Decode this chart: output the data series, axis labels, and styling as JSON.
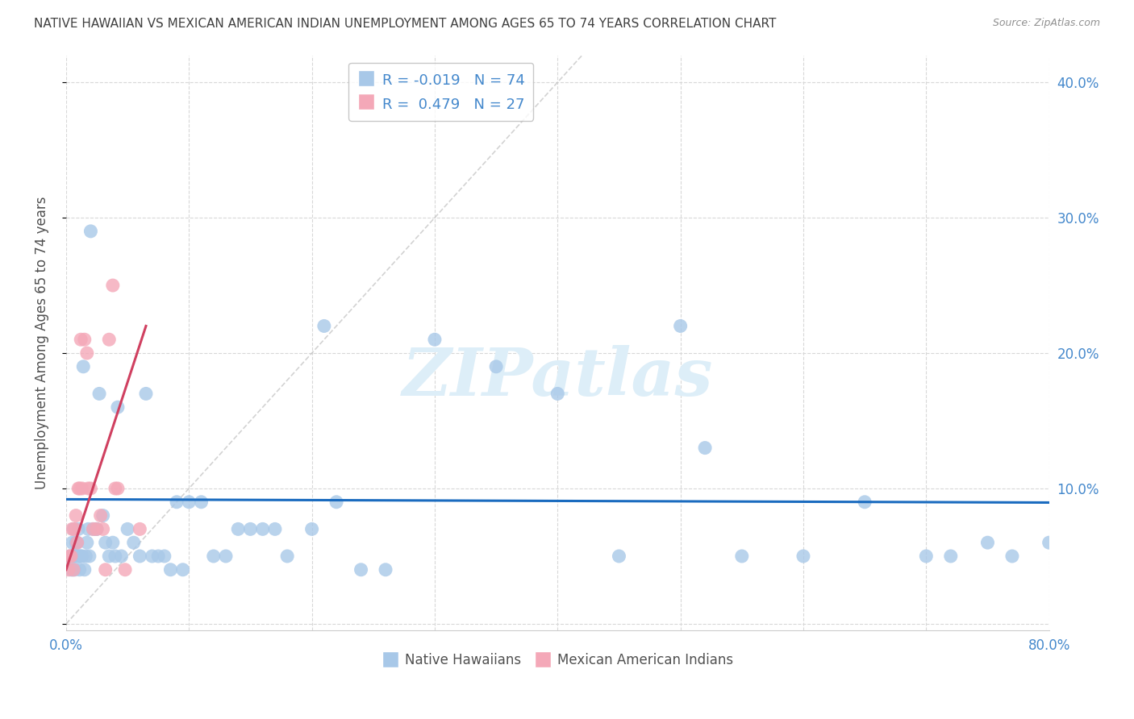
{
  "title": "NATIVE HAWAIIAN VS MEXICAN AMERICAN INDIAN UNEMPLOYMENT AMONG AGES 65 TO 74 YEARS CORRELATION CHART",
  "source": "Source: ZipAtlas.com",
  "ylabel": "Unemployment Among Ages 65 to 74 years",
  "xlim": [
    0.0,
    0.8
  ],
  "ylim": [
    -0.005,
    0.42
  ],
  "xticks": [
    0.0,
    0.1,
    0.2,
    0.3,
    0.4,
    0.5,
    0.6,
    0.7,
    0.8
  ],
  "yticks": [
    0.0,
    0.1,
    0.2,
    0.3,
    0.4
  ],
  "ytick_labels": [
    "",
    "10.0%",
    "20.0%",
    "30.0%",
    "40.0%"
  ],
  "xtick_labels": [
    "0.0%",
    "",
    "",
    "",
    "",
    "",
    "",
    "",
    "80.0%"
  ],
  "legend_blue_label": "R = -0.019   N = 74",
  "legend_pink_label": "R =  0.479   N = 27",
  "blue_color": "#a8c8e8",
  "pink_color": "#f4a8b8",
  "blue_line_color": "#1a6bbf",
  "pink_line_color": "#d04060",
  "diag_line_color": "#c0c0c0",
  "title_color": "#404040",
  "source_color": "#909090",
  "axis_color": "#4488cc",
  "tick_color": "#4488cc",
  "grid_color": "#d8d8d8",
  "watermark_color": "#ddeef8",
  "blue_R": -0.019,
  "blue_N": 74,
  "pink_R": 0.479,
  "pink_N": 27,
  "blue_x": [
    0.003,
    0.004,
    0.005,
    0.005,
    0.006,
    0.006,
    0.007,
    0.007,
    0.008,
    0.008,
    0.009,
    0.009,
    0.01,
    0.01,
    0.011,
    0.011,
    0.012,
    0.013,
    0.014,
    0.015,
    0.016,
    0.017,
    0.018,
    0.019,
    0.02,
    0.022,
    0.024,
    0.025,
    0.027,
    0.03,
    0.032,
    0.035,
    0.038,
    0.04,
    0.042,
    0.045,
    0.05,
    0.055,
    0.06,
    0.065,
    0.07,
    0.075,
    0.08,
    0.085,
    0.09,
    0.095,
    0.1,
    0.11,
    0.12,
    0.13,
    0.14,
    0.15,
    0.16,
    0.17,
    0.18,
    0.2,
    0.21,
    0.22,
    0.24,
    0.26,
    0.3,
    0.35,
    0.4,
    0.45,
    0.5,
    0.52,
    0.55,
    0.6,
    0.65,
    0.7,
    0.72,
    0.75,
    0.77,
    0.8
  ],
  "blue_y": [
    0.05,
    0.04,
    0.06,
    0.04,
    0.05,
    0.07,
    0.05,
    0.04,
    0.06,
    0.05,
    0.05,
    0.06,
    0.07,
    0.05,
    0.05,
    0.04,
    0.05,
    0.05,
    0.19,
    0.04,
    0.05,
    0.06,
    0.07,
    0.05,
    0.29,
    0.07,
    0.07,
    0.07,
    0.17,
    0.08,
    0.06,
    0.05,
    0.06,
    0.05,
    0.16,
    0.05,
    0.07,
    0.06,
    0.05,
    0.17,
    0.05,
    0.05,
    0.05,
    0.04,
    0.09,
    0.04,
    0.09,
    0.09,
    0.05,
    0.05,
    0.07,
    0.07,
    0.07,
    0.07,
    0.05,
    0.07,
    0.22,
    0.09,
    0.04,
    0.04,
    0.21,
    0.19,
    0.17,
    0.05,
    0.22,
    0.13,
    0.05,
    0.05,
    0.09,
    0.05,
    0.05,
    0.06,
    0.05,
    0.06
  ],
  "pink_x": [
    0.002,
    0.003,
    0.004,
    0.005,
    0.006,
    0.007,
    0.008,
    0.009,
    0.01,
    0.011,
    0.012,
    0.013,
    0.015,
    0.017,
    0.018,
    0.02,
    0.022,
    0.025,
    0.028,
    0.03,
    0.032,
    0.035,
    0.038,
    0.04,
    0.042,
    0.048,
    0.06
  ],
  "pink_y": [
    0.04,
    0.05,
    0.05,
    0.07,
    0.04,
    0.07,
    0.08,
    0.06,
    0.1,
    0.1,
    0.21,
    0.1,
    0.21,
    0.2,
    0.1,
    0.1,
    0.07,
    0.07,
    0.08,
    0.07,
    0.04,
    0.21,
    0.25,
    0.1,
    0.1,
    0.04,
    0.07
  ],
  "blue_trend_x": [
    0.0,
    0.8
  ],
  "blue_trend_y_intercept": 0.092,
  "blue_trend_slope": -0.003,
  "pink_trend_x_start": 0.0,
  "pink_trend_x_end": 0.065,
  "pink_trend_y_start": 0.04,
  "pink_trend_y_end": 0.22
}
